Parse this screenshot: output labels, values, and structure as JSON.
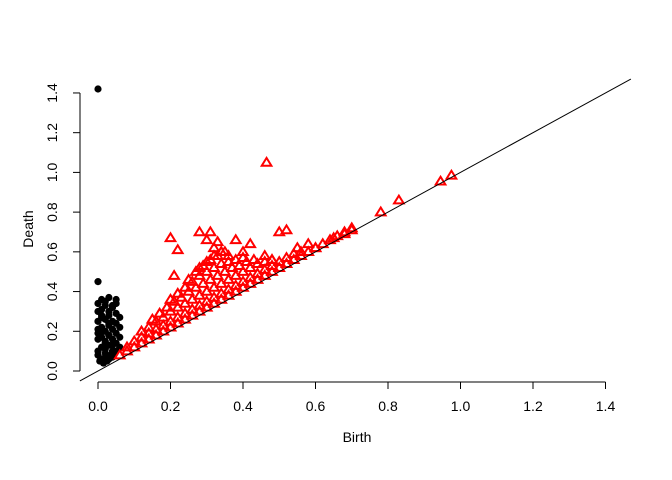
{
  "chart_data": {
    "type": "scatter",
    "xlabel": "Birth",
    "ylabel": "Death",
    "xlim": [
      0,
      1.4
    ],
    "ylim": [
      0,
      1.4
    ],
    "xticks": [
      "0.0",
      "0.2",
      "0.4",
      "0.6",
      "0.8",
      "1.0",
      "1.2",
      "1.4"
    ],
    "yticks": [
      "0.0",
      "0.2",
      "0.4",
      "0.6",
      "0.8",
      "1.0",
      "1.2",
      "1.4"
    ],
    "diagonal": true,
    "grid": false,
    "series": [
      {
        "marker": "filled-circle",
        "color": "#000000",
        "x": [
          0.0,
          0.0,
          0.005,
          0.01,
          0.015,
          0.02,
          0.025,
          0.03,
          0.035,
          0.04,
          0.045,
          0.05,
          0.0,
          0.01,
          0.02,
          0.03,
          0.04,
          0.05,
          0.06,
          0.0,
          0.01,
          0.02,
          0.03,
          0.04,
          0.05,
          0.06,
          0.0,
          0.01,
          0.02,
          0.03,
          0.04,
          0.05,
          0.06,
          0.0,
          0.01,
          0.02,
          0.03,
          0.04,
          0.05,
          0.06,
          0.0,
          0.01,
          0.02,
          0.03,
          0.04,
          0.05,
          0.0,
          0.01,
          0.02,
          0.03,
          0.04,
          0.05,
          0.0,
          0.01,
          0.02,
          0.03,
          0.0,
          0.02,
          0.04,
          0.01,
          0.03
        ],
        "y": [
          1.42,
          0.45,
          0.05,
          0.06,
          0.04,
          0.07,
          0.05,
          0.06,
          0.08,
          0.07,
          0.09,
          0.1,
          0.1,
          0.12,
          0.11,
          0.13,
          0.1,
          0.14,
          0.12,
          0.16,
          0.17,
          0.15,
          0.18,
          0.16,
          0.19,
          0.17,
          0.21,
          0.22,
          0.2,
          0.23,
          0.21,
          0.24,
          0.22,
          0.25,
          0.27,
          0.26,
          0.28,
          0.25,
          0.29,
          0.27,
          0.3,
          0.31,
          0.33,
          0.3,
          0.32,
          0.34,
          0.34,
          0.36,
          0.35,
          0.37,
          0.33,
          0.36,
          0.19,
          0.2,
          0.14,
          0.24,
          0.08,
          0.09,
          0.13,
          0.28,
          0.18
        ]
      },
      {
        "marker": "open-triangle",
        "color": "#ff0000",
        "x": [
          0.06,
          0.08,
          0.1,
          0.12,
          0.14,
          0.16,
          0.18,
          0.2,
          0.22,
          0.24,
          0.26,
          0.28,
          0.3,
          0.32,
          0.34,
          0.36,
          0.38,
          0.4,
          0.42,
          0.44,
          0.46,
          0.48,
          0.5,
          0.52,
          0.54,
          0.56,
          0.58,
          0.6,
          0.62,
          0.64,
          0.66,
          0.68,
          0.7,
          0.08,
          0.1,
          0.12,
          0.14,
          0.16,
          0.18,
          0.2,
          0.22,
          0.24,
          0.26,
          0.28,
          0.3,
          0.32,
          0.34,
          0.36,
          0.38,
          0.4,
          0.42,
          0.44,
          0.46,
          0.48,
          0.5,
          0.52,
          0.54,
          0.56,
          0.12,
          0.14,
          0.16,
          0.18,
          0.2,
          0.22,
          0.24,
          0.26,
          0.28,
          0.3,
          0.32,
          0.34,
          0.36,
          0.38,
          0.4,
          0.42,
          0.44,
          0.46,
          0.48,
          0.15,
          0.17,
          0.19,
          0.21,
          0.23,
          0.25,
          0.27,
          0.29,
          0.31,
          0.33,
          0.35,
          0.37,
          0.39,
          0.41,
          0.43,
          0.2,
          0.22,
          0.24,
          0.26,
          0.28,
          0.3,
          0.32,
          0.34,
          0.36,
          0.38,
          0.4,
          0.25,
          0.27,
          0.29,
          0.31,
          0.33,
          0.35,
          0.28,
          0.3,
          0.32,
          0.34,
          0.2,
          0.21,
          0.22,
          0.28,
          0.3,
          0.31,
          0.32,
          0.33,
          0.34,
          0.36,
          0.4,
          0.42,
          0.46,
          0.5,
          0.52,
          0.48,
          0.55,
          0.58,
          0.6,
          0.65,
          0.68,
          0.7,
          0.78,
          0.83,
          0.945,
          0.975,
          0.465,
          0.38
        ],
        "y": [
          0.08,
          0.1,
          0.12,
          0.14,
          0.16,
          0.18,
          0.2,
          0.22,
          0.24,
          0.26,
          0.28,
          0.3,
          0.32,
          0.34,
          0.36,
          0.38,
          0.4,
          0.42,
          0.44,
          0.46,
          0.48,
          0.5,
          0.52,
          0.54,
          0.56,
          0.58,
          0.6,
          0.62,
          0.64,
          0.66,
          0.68,
          0.7,
          0.72,
          0.12,
          0.15,
          0.17,
          0.19,
          0.21,
          0.23,
          0.25,
          0.27,
          0.29,
          0.31,
          0.33,
          0.35,
          0.37,
          0.39,
          0.41,
          0.43,
          0.45,
          0.47,
          0.49,
          0.51,
          0.53,
          0.55,
          0.57,
          0.59,
          0.6,
          0.2,
          0.22,
          0.25,
          0.27,
          0.3,
          0.32,
          0.34,
          0.36,
          0.38,
          0.4,
          0.42,
          0.44,
          0.46,
          0.48,
          0.5,
          0.52,
          0.54,
          0.55,
          0.56,
          0.26,
          0.29,
          0.32,
          0.35,
          0.37,
          0.4,
          0.42,
          0.44,
          0.46,
          0.48,
          0.5,
          0.52,
          0.53,
          0.55,
          0.56,
          0.36,
          0.39,
          0.42,
          0.45,
          0.48,
          0.5,
          0.52,
          0.54,
          0.55,
          0.56,
          0.57,
          0.46,
          0.5,
          0.53,
          0.56,
          0.58,
          0.6,
          0.52,
          0.55,
          0.58,
          0.6,
          0.67,
          0.48,
          0.61,
          0.7,
          0.66,
          0.7,
          0.62,
          0.65,
          0.6,
          0.58,
          0.6,
          0.64,
          0.58,
          0.7,
          0.71,
          0.56,
          0.62,
          0.64,
          0.62,
          0.67,
          0.69,
          0.71,
          0.8,
          0.86,
          0.955,
          0.985,
          1.05,
          0.66
        ]
      }
    ]
  }
}
